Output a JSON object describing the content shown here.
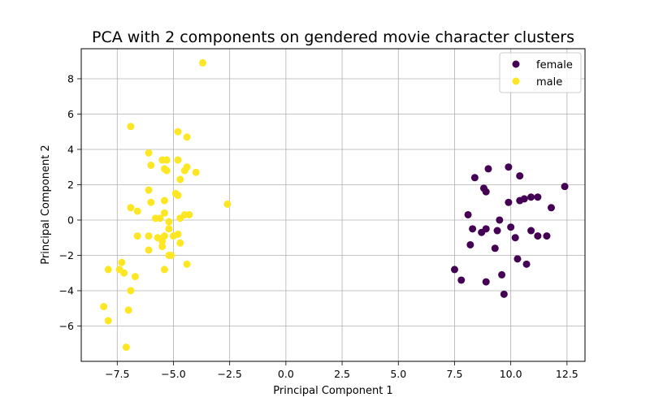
{
  "chart_data": {
    "type": "scatter",
    "title": "PCA with 2 components on gendered movie character clusters",
    "xlabel": "Principal Component 1",
    "ylabel": "Principal Component 2",
    "xlim": [
      -9.1,
      13.3
    ],
    "ylim": [
      -8.0,
      9.7
    ],
    "x_ticks": [
      -7.5,
      -5.0,
      -2.5,
      0.0,
      2.5,
      5.0,
      7.5,
      10.0,
      12.5
    ],
    "x_tick_labels": [
      "−7.5",
      "−5.0",
      "−2.5",
      "0.0",
      "2.5",
      "5.0",
      "7.5",
      "10.0",
      "12.5"
    ],
    "y_ticks": [
      -6,
      -4,
      -2,
      0,
      2,
      4,
      6,
      8
    ],
    "y_tick_labels": [
      "−6",
      "−4",
      "−2",
      "0",
      "2",
      "4",
      "6",
      "8"
    ],
    "grid": true,
    "legend_position": "top-right",
    "series": [
      {
        "name": "female",
        "color": "#440154",
        "points": [
          [
            8.4,
            2.4
          ],
          [
            9.0,
            2.9
          ],
          [
            9.9,
            3.0
          ],
          [
            10.4,
            2.5
          ],
          [
            8.8,
            1.8
          ],
          [
            8.9,
            1.6
          ],
          [
            9.9,
            1.0
          ],
          [
            10.4,
            1.1
          ],
          [
            10.6,
            1.2
          ],
          [
            10.9,
            1.3
          ],
          [
            11.2,
            1.3
          ],
          [
            12.4,
            1.9
          ],
          [
            11.8,
            0.7
          ],
          [
            8.1,
            0.3
          ],
          [
            9.5,
            0.0
          ],
          [
            10.0,
            -0.4
          ],
          [
            8.3,
            -0.5
          ],
          [
            8.9,
            -0.5
          ],
          [
            8.7,
            -0.7
          ],
          [
            9.4,
            -0.6
          ],
          [
            10.9,
            -0.6
          ],
          [
            11.2,
            -0.9
          ],
          [
            11.6,
            -0.9
          ],
          [
            10.2,
            -1.0
          ],
          [
            8.2,
            -1.4
          ],
          [
            9.3,
            -1.6
          ],
          [
            10.3,
            -2.2
          ],
          [
            10.7,
            -2.5
          ],
          [
            7.5,
            -2.8
          ],
          [
            9.6,
            -3.1
          ],
          [
            7.8,
            -3.4
          ],
          [
            8.9,
            -3.5
          ],
          [
            9.7,
            -4.2
          ]
        ]
      },
      {
        "name": "male",
        "color": "#fde725",
        "points": [
          [
            -3.7,
            8.9
          ],
          [
            -6.9,
            5.3
          ],
          [
            -4.8,
            5.0
          ],
          [
            -4.4,
            4.7
          ],
          [
            -6.1,
            3.8
          ],
          [
            -5.5,
            3.4
          ],
          [
            -5.3,
            3.4
          ],
          [
            -4.8,
            3.4
          ],
          [
            -6.0,
            3.1
          ],
          [
            -5.4,
            2.9
          ],
          [
            -5.3,
            2.8
          ],
          [
            -4.4,
            3.0
          ],
          [
            -4.5,
            2.8
          ],
          [
            -4.0,
            2.7
          ],
          [
            -4.7,
            2.3
          ],
          [
            -6.1,
            1.7
          ],
          [
            -4.9,
            1.5
          ],
          [
            -4.8,
            1.4
          ],
          [
            -6.0,
            1.0
          ],
          [
            -5.4,
            1.1
          ],
          [
            -2.6,
            0.9
          ],
          [
            -6.9,
            0.7
          ],
          [
            -6.6,
            0.5
          ],
          [
            -5.8,
            0.1
          ],
          [
            -5.4,
            0.4
          ],
          [
            -5.6,
            0.1
          ],
          [
            -4.7,
            0.1
          ],
          [
            -4.5,
            0.3
          ],
          [
            -4.3,
            0.3
          ],
          [
            -5.2,
            -0.1
          ],
          [
            -5.2,
            -0.5
          ],
          [
            -6.6,
            -0.9
          ],
          [
            -6.1,
            -0.9
          ],
          [
            -5.7,
            -1.0
          ],
          [
            -5.4,
            -0.9
          ],
          [
            -5.0,
            -0.9
          ],
          [
            -4.8,
            -0.8
          ],
          [
            -5.5,
            -1.2
          ],
          [
            -4.7,
            -1.3
          ],
          [
            -5.5,
            -1.5
          ],
          [
            -6.1,
            -1.7
          ],
          [
            -5.2,
            -2.0
          ],
          [
            -5.1,
            -2.0
          ],
          [
            -5.4,
            -2.8
          ],
          [
            -4.4,
            -2.5
          ],
          [
            -7.9,
            -2.8
          ],
          [
            -7.4,
            -2.8
          ],
          [
            -7.3,
            -2.4
          ],
          [
            -7.2,
            -3.0
          ],
          [
            -6.7,
            -3.2
          ],
          [
            -6.9,
            -4.0
          ],
          [
            -8.1,
            -4.9
          ],
          [
            -7.0,
            -5.1
          ],
          [
            -7.9,
            -5.7
          ],
          [
            -7.1,
            -7.2
          ]
        ]
      }
    ]
  }
}
